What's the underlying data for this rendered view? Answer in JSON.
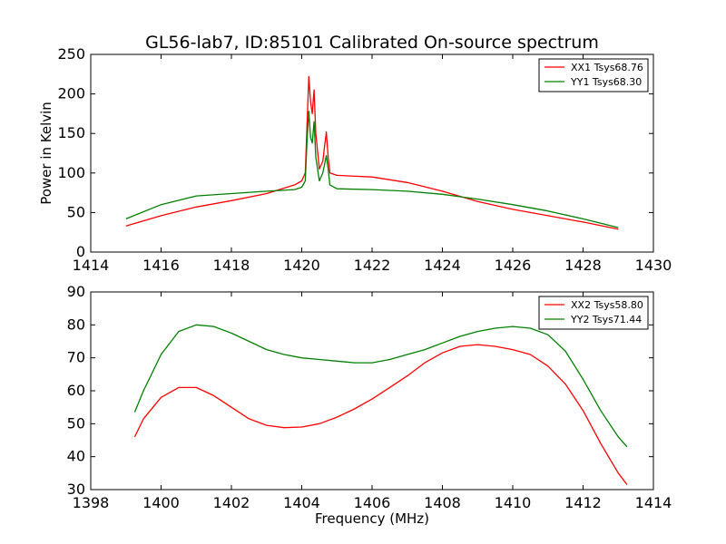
{
  "chart_data": [
    {
      "type": "line",
      "title": "GL56-lab7, ID:85101 Calibrated On-source spectrum",
      "xlabel": "",
      "ylabel": "Power in Kelvin",
      "xlim": [
        1414,
        1430
      ],
      "ylim": [
        0,
        250
      ],
      "xticks": [
        "1414",
        "1416",
        "1418",
        "1420",
        "1422",
        "1424",
        "1426",
        "1428",
        "1430"
      ],
      "yticks": [
        "0",
        "50",
        "100",
        "150",
        "200",
        "250"
      ],
      "legend_position": "top-right",
      "series": [
        {
          "name": "XX1 Tsys68.76",
          "color": "#ff0000",
          "x": [
            1415.0,
            1416.0,
            1417.0,
            1418.0,
            1419.0,
            1419.8,
            1420.0,
            1420.1,
            1420.15,
            1420.2,
            1420.25,
            1420.3,
            1420.35,
            1420.4,
            1420.5,
            1420.6,
            1420.7,
            1420.75,
            1420.8,
            1421.0,
            1422.0,
            1423.0,
            1424.0,
            1425.0,
            1426.0,
            1427.0,
            1428.0,
            1429.0
          ],
          "values": [
            33,
            46,
            57,
            65,
            74,
            85,
            90,
            100,
            160,
            222,
            190,
            175,
            205,
            150,
            105,
            115,
            152,
            120,
            100,
            97,
            95,
            88,
            77,
            64,
            54,
            46,
            38,
            29
          ]
        },
        {
          "name": "YY1 Tsys68.30",
          "color": "#008000",
          "x": [
            1415.0,
            1416.0,
            1417.0,
            1418.0,
            1419.0,
            1419.8,
            1420.0,
            1420.1,
            1420.15,
            1420.2,
            1420.25,
            1420.3,
            1420.35,
            1420.4,
            1420.5,
            1420.6,
            1420.7,
            1420.75,
            1420.8,
            1421.0,
            1422.0,
            1423.0,
            1424.0,
            1425.0,
            1426.0,
            1427.0,
            1428.0,
            1429.0
          ],
          "values": [
            42,
            60,
            71,
            74,
            77,
            79,
            82,
            90,
            140,
            178,
            145,
            138,
            165,
            120,
            90,
            100,
            122,
            105,
            85,
            80,
            79,
            77,
            73,
            67,
            60,
            52,
            42,
            31
          ]
        }
      ]
    },
    {
      "type": "line",
      "title": "",
      "xlabel": "Frequency (MHz)",
      "ylabel": "",
      "xlim": [
        1398,
        1414
      ],
      "ylim": [
        30,
        90
      ],
      "xticks": [
        "1398",
        "1400",
        "1402",
        "1404",
        "1406",
        "1408",
        "1410",
        "1412",
        "1414"
      ],
      "yticks": [
        "30",
        "40",
        "50",
        "60",
        "70",
        "80",
        "90"
      ],
      "legend_position": "top-right",
      "series": [
        {
          "name": "XX2 Tsys58.80",
          "color": "#ff0000",
          "x": [
            1399.25,
            1399.5,
            1400.0,
            1400.5,
            1401.0,
            1401.5,
            1402.0,
            1402.5,
            1403.0,
            1403.5,
            1404.0,
            1404.5,
            1405.0,
            1405.5,
            1406.0,
            1406.5,
            1407.0,
            1407.5,
            1408.0,
            1408.5,
            1409.0,
            1409.5,
            1410.0,
            1410.5,
            1411.0,
            1411.5,
            1412.0,
            1412.5,
            1413.0,
            1413.25
          ],
          "values": [
            46,
            51.5,
            58,
            61,
            61,
            58.5,
            55,
            51.5,
            49.5,
            48.8,
            49,
            50,
            52,
            54.5,
            57.5,
            61,
            64.5,
            68.5,
            71.5,
            73.5,
            74,
            73.5,
            72.5,
            71,
            67.5,
            62,
            54,
            44,
            35,
            31.5
          ]
        },
        {
          "name": "YY2 Tsys71.44",
          "color": "#008000",
          "x": [
            1399.25,
            1399.5,
            1400.0,
            1400.5,
            1401.0,
            1401.5,
            1402.0,
            1402.5,
            1403.0,
            1403.5,
            1404.0,
            1404.5,
            1405.0,
            1405.5,
            1406.0,
            1406.5,
            1407.0,
            1407.5,
            1408.0,
            1408.5,
            1409.0,
            1409.5,
            1410.0,
            1410.5,
            1411.0,
            1411.5,
            1412.0,
            1412.5,
            1413.0,
            1413.25
          ],
          "values": [
            53.5,
            60,
            71,
            78,
            80,
            79.5,
            77.5,
            75,
            72.5,
            71,
            70,
            69.5,
            69,
            68.5,
            68.5,
            69.5,
            71,
            72.5,
            74.5,
            76.5,
            78,
            79,
            79.5,
            79,
            77,
            72,
            63.5,
            54,
            46,
            43
          ]
        }
      ]
    }
  ]
}
